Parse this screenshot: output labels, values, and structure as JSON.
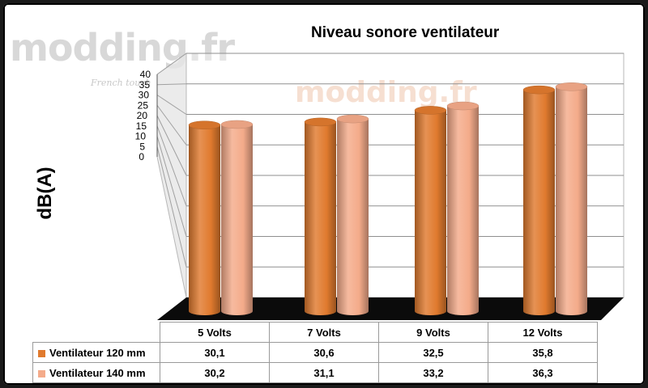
{
  "watermark": {
    "logo": "modding.fr",
    "tagline": "French touch",
    "center_logo": "modding.fr"
  },
  "chart_data": {
    "type": "bar",
    "title": "Niveau sonore ventilateur",
    "xlabel": "",
    "ylabel": "dB(A)",
    "ylim": [
      0,
      40
    ],
    "yticks": [
      "0",
      "5",
      "10",
      "15",
      "20",
      "25",
      "30",
      "35",
      "40"
    ],
    "categories": [
      "5 Volts",
      "7 Volts",
      "9 Volts",
      "12 Volts"
    ],
    "series": [
      {
        "name": "Ventilateur 120 mm",
        "color": "#e07a2e",
        "values": [
          30.1,
          30.6,
          32.5,
          35.8
        ],
        "labels": [
          "30,1",
          "30,6",
          "32,5",
          "35,8"
        ]
      },
      {
        "name": "Ventilateur 140 mm",
        "color": "#f4ab8a",
        "values": [
          30.2,
          31.1,
          33.2,
          36.3
        ],
        "labels": [
          "30,2",
          "31,1",
          "33,2",
          "36,3"
        ]
      }
    ],
    "grid": true,
    "legend": "data-table"
  }
}
